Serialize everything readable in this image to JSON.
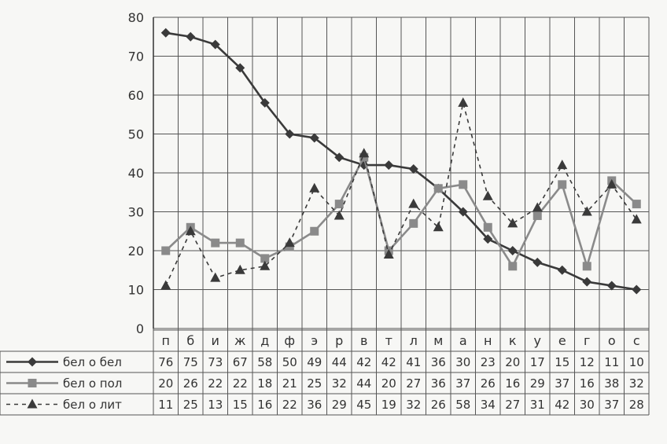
{
  "chart_data": {
    "type": "line",
    "title": "",
    "xlabel": "",
    "ylabel": "",
    "ylim": [
      0,
      80
    ],
    "y_ticks": [
      "0",
      "10",
      "20",
      "30",
      "40",
      "50",
      "60",
      "70",
      "80"
    ],
    "grid": true,
    "legend": "in-table-left",
    "categories": [
      "п",
      "б",
      "и",
      "ж",
      "д",
      "ф",
      "э",
      "р",
      "в",
      "т",
      "л",
      "м",
      "а",
      "н",
      "к",
      "у",
      "е",
      "г",
      "о",
      "с"
    ],
    "series": [
      {
        "name": "бел о бел",
        "marker": "diamond",
        "dash": "solid",
        "color": "#3a3a3a",
        "values": [
          76,
          75,
          73,
          67,
          58,
          50,
          49,
          44,
          42,
          42,
          41,
          36,
          30,
          23,
          20,
          17,
          15,
          12,
          11,
          10
        ]
      },
      {
        "name": "бел о пол",
        "marker": "square",
        "dash": "solid",
        "color": "#8a8a8a",
        "values": [
          20,
          26,
          22,
          22,
          18,
          21,
          25,
          32,
          44,
          20,
          27,
          36,
          37,
          26,
          16,
          29,
          37,
          16,
          38,
          32
        ]
      },
      {
        "name": "бел о лит",
        "marker": "triangle",
        "dash": "dashed",
        "color": "#3a3a3a",
        "values": [
          11,
          25,
          13,
          15,
          16,
          22,
          36,
          29,
          45,
          19,
          32,
          26,
          58,
          34,
          27,
          31,
          42,
          30,
          37,
          28
        ]
      }
    ]
  }
}
